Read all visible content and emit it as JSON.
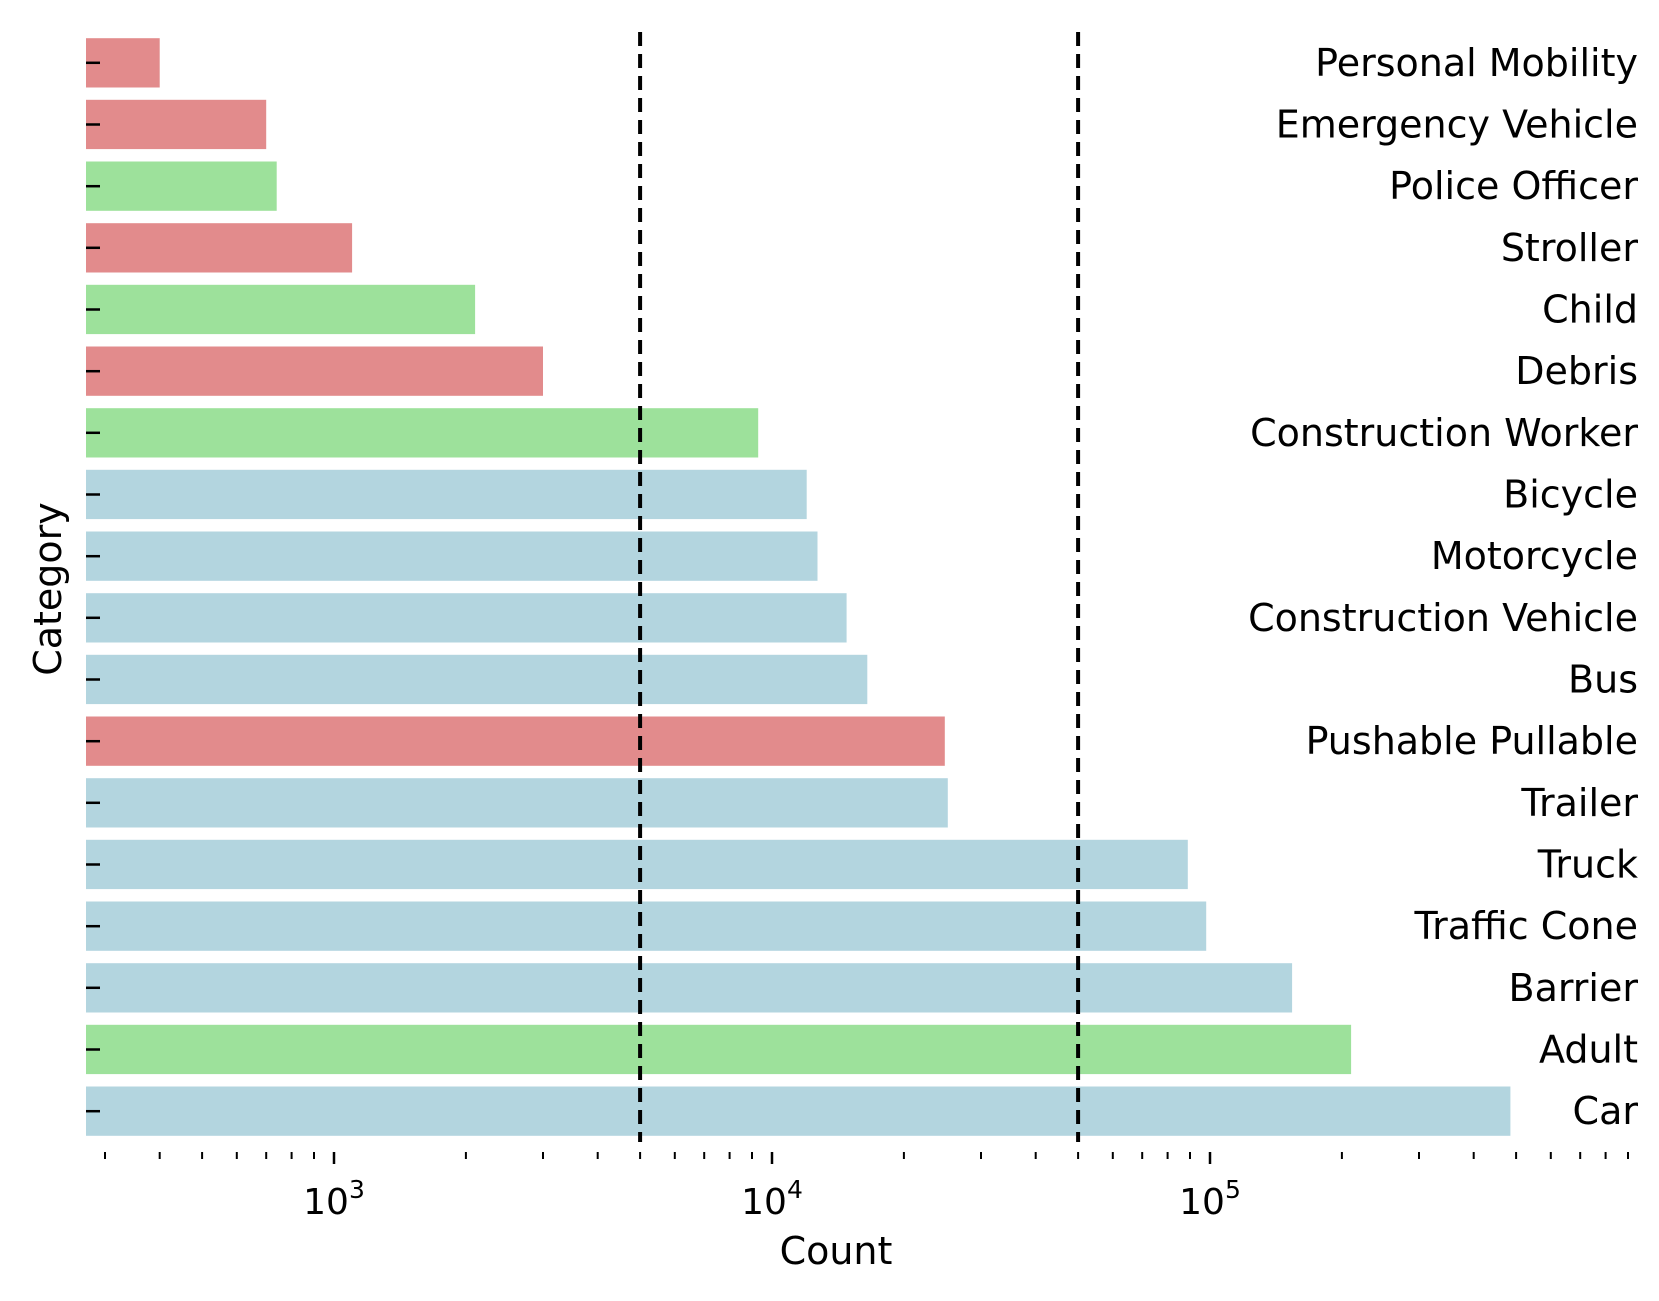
{
  "chart_data": {
    "type": "bar",
    "orientation": "horizontal",
    "xscale": "log",
    "xlabel": "Count",
    "ylabel": "Category",
    "xlim": [
      270,
      900000
    ],
    "grid": false,
    "x_ticks": [
      {
        "base": "10",
        "exp": "3",
        "value": 1000
      },
      {
        "base": "10",
        "exp": "4",
        "value": 10000
      },
      {
        "base": "10",
        "exp": "5",
        "value": 100000
      }
    ],
    "reference_lines": [
      5000,
      50000
    ],
    "category_label_position": "right",
    "colors": {
      "red": "#e28b8c",
      "green": "#9de19b",
      "blue": "#b3d5df",
      "reference_line": "#000000"
    },
    "bars": [
      {
        "label": "Personal Mobility",
        "value": 400,
        "color_group": "red"
      },
      {
        "label": "Emergency Vehicle",
        "value": 700,
        "color_group": "red"
      },
      {
        "label": "Police Officer",
        "value": 740,
        "color_group": "green"
      },
      {
        "label": "Stroller",
        "value": 1100,
        "color_group": "red"
      },
      {
        "label": "Child",
        "value": 2100,
        "color_group": "green"
      },
      {
        "label": "Debris",
        "value": 3000,
        "color_group": "red"
      },
      {
        "label": "Construction Worker",
        "value": 9300,
        "color_group": "green"
      },
      {
        "label": "Bicycle",
        "value": 12000,
        "color_group": "blue"
      },
      {
        "label": "Motorcycle",
        "value": 12700,
        "color_group": "blue"
      },
      {
        "label": "Construction Vehicle",
        "value": 14800,
        "color_group": "blue"
      },
      {
        "label": "Bus",
        "value": 16500,
        "color_group": "blue"
      },
      {
        "label": "Pushable Pullable",
        "value": 24800,
        "color_group": "red"
      },
      {
        "label": "Trailer",
        "value": 25200,
        "color_group": "blue"
      },
      {
        "label": "Truck",
        "value": 89000,
        "color_group": "blue"
      },
      {
        "label": "Traffic Cone",
        "value": 98000,
        "color_group": "blue"
      },
      {
        "label": "Barrier",
        "value": 154000,
        "color_group": "blue"
      },
      {
        "label": "Adult",
        "value": 210000,
        "color_group": "green"
      },
      {
        "label": "Car",
        "value": 485000,
        "color_group": "blue"
      }
    ]
  }
}
